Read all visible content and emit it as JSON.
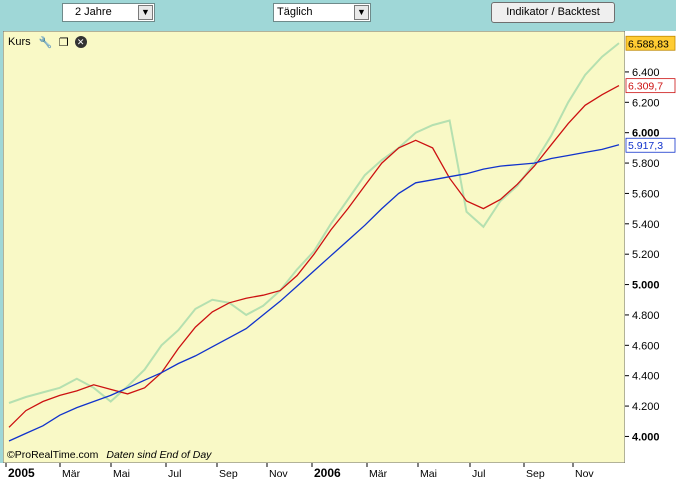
{
  "toolbar": {
    "period": "2 Jahre",
    "interval": "Täglich",
    "indicator_button": "Indikator / Backtest"
  },
  "panel": {
    "title": "Kurs"
  },
  "footer": {
    "source": "©ProRealTime.com",
    "note": "Daten sind End of Day"
  },
  "colors": {
    "background": "#f9f9c6",
    "price": "#b5e0b0",
    "ma_short": "#cc1111",
    "ma_long": "#1133cc",
    "last_price_badge": "#ffcc33"
  },
  "icons": [
    "wrench-icon",
    "window-icon",
    "close-icon"
  ],
  "chart_data": {
    "type": "line",
    "y_ticks": [
      "4.000",
      "4.200",
      "4.400",
      "4.600",
      "4.800",
      "5.000",
      "5.200",
      "5.400",
      "5.600",
      "5.800",
      "6.000",
      "6.200",
      "6.400"
    ],
    "x_labels": [
      "2005",
      "Mär",
      "Mai",
      "Jul",
      "Sep",
      "Nov",
      "2006",
      "Mär",
      "Mai",
      "Jul",
      "Sep",
      "Nov"
    ],
    "ylim": [
      3970,
      6630
    ],
    "last_values": {
      "price": "6.588,83",
      "ma_short": "6.309,7",
      "ma_long": "5.917,3"
    },
    "series": [
      {
        "key": "price",
        "values": [
          4220,
          4260,
          4290,
          4320,
          4380,
          4320,
          4230,
          4330,
          4440,
          4600,
          4700,
          4840,
          4900,
          4880,
          4800,
          4860,
          4960,
          5100,
          5220,
          5400,
          5560,
          5720,
          5820,
          5900,
          6000,
          6050,
          6080,
          5480,
          5380,
          5550,
          5650,
          5800,
          5980,
          6200,
          6380,
          6500,
          6590
        ]
      },
      {
        "key": "ma_short",
        "values": [
          4060,
          4170,
          4230,
          4270,
          4300,
          4340,
          4310,
          4280,
          4320,
          4420,
          4580,
          4720,
          4820,
          4880,
          4910,
          4930,
          4960,
          5060,
          5200,
          5360,
          5500,
          5650,
          5800,
          5900,
          5950,
          5900,
          5700,
          5550,
          5500,
          5560,
          5660,
          5780,
          5920,
          6060,
          6180,
          6250,
          6310
        ]
      },
      {
        "key": "ma_long",
        "values": [
          3970,
          4020,
          4070,
          4140,
          4190,
          4230,
          4270,
          4320,
          4370,
          4420,
          4480,
          4530,
          4590,
          4650,
          4710,
          4800,
          4890,
          4990,
          5090,
          5190,
          5290,
          5390,
          5500,
          5600,
          5670,
          5690,
          5710,
          5730,
          5760,
          5780,
          5790,
          5800,
          5830,
          5850,
          5870,
          5890,
          5920
        ]
      }
    ]
  }
}
